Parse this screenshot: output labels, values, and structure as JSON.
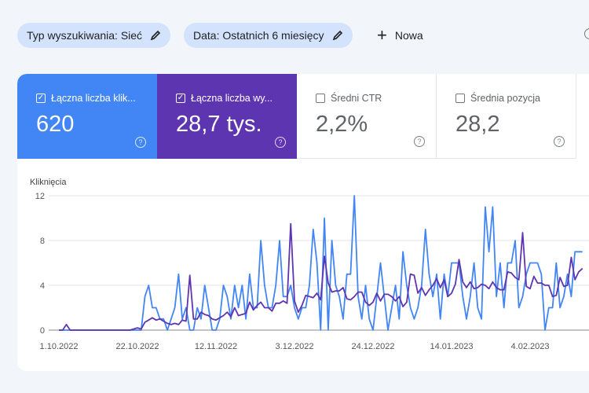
{
  "filters": {
    "search_type": "Typ wyszukiwania: Sieć",
    "date": "Data: Ostatnich 6 miesięcy",
    "new_label": "Nowa"
  },
  "metrics": [
    {
      "label": "Łączna liczba klik...",
      "value": "620",
      "checked": true,
      "color": "#4285f4"
    },
    {
      "label": "Łączna liczba wy...",
      "value": "28,7 tys.",
      "checked": true,
      "color": "#5e35b1"
    },
    {
      "label": "Średni CTR",
      "value": "2,2%",
      "checked": false
    },
    {
      "label": "Średnia pozycja",
      "value": "28,2",
      "checked": false
    }
  ],
  "chart_data": {
    "type": "line",
    "ylabel": "Kliknięcia",
    "ylim": [
      0,
      12
    ],
    "yticks": [
      "0",
      "4",
      "8",
      "12"
    ],
    "xticks": [
      "1.10.2022",
      "22.10.2022",
      "12.11.2022",
      "3.12.2022",
      "24.12.2022",
      "14.01.2023",
      "4.02.2023"
    ],
    "x_start": "1.10.2022",
    "x_step": "1 day",
    "grid": true,
    "series": [
      {
        "color": "#4285f4",
        "values": [
          0,
          0,
          0,
          0,
          0,
          0,
          0,
          0,
          0,
          0,
          0,
          0,
          0,
          0,
          0,
          0,
          0,
          0,
          0,
          0,
          0,
          0,
          0,
          3,
          4,
          2,
          2,
          1,
          1,
          0,
          1,
          2,
          5,
          1,
          2,
          0,
          0,
          2,
          1,
          4,
          2,
          0,
          0,
          1,
          4,
          3,
          1,
          4,
          2,
          4,
          1,
          5,
          2,
          2,
          8,
          4,
          2,
          2,
          4,
          8,
          3,
          3,
          4,
          2,
          1,
          2,
          2,
          4,
          9,
          6,
          0,
          10,
          0,
          8,
          4,
          3,
          1,
          5,
          5,
          12,
          3,
          1,
          4,
          1,
          0,
          3,
          6,
          3,
          0,
          2,
          4,
          1,
          7,
          4,
          2,
          1,
          2,
          4,
          9,
          5,
          3,
          5,
          1,
          5,
          3,
          6,
          6,
          6,
          3,
          1,
          3,
          6,
          2,
          1,
          11,
          7,
          11,
          3,
          6,
          2,
          6,
          6,
          8,
          2,
          3,
          5,
          6,
          6,
          6,
          5,
          0,
          2,
          2,
          6,
          2,
          3,
          5,
          3,
          7,
          7,
          7
        ]
      },
      {
        "color": "#5e35b1",
        "values": [
          0,
          0,
          0.5,
          0,
          0,
          0,
          0,
          0,
          0,
          0,
          0,
          0,
          0,
          0,
          0,
          0,
          0,
          0,
          0,
          0,
          0.1,
          0.2,
          0.1,
          0.7,
          0.9,
          1.1,
          0.9,
          1,
          0.8,
          0.6,
          0.5,
          0.6,
          0.5,
          0.9,
          0.8,
          4.9,
          1,
          1,
          1.6,
          1.4,
          1.3,
          1,
          0.9,
          1.1,
          1.3,
          1.6,
          1.2,
          2,
          1.3,
          1.4,
          1.5,
          2.5,
          1.8,
          2.2,
          2.5,
          2,
          2,
          1.7,
          2.4,
          2.4,
          2.6,
          2.4,
          9.5,
          2.6,
          1.6,
          2.2,
          3.1,
          3,
          2.9,
          3.3,
          2.7,
          6.6,
          4.2,
          3.4,
          3.5,
          3.5,
          3.8,
          2.8,
          2.7,
          3,
          3.4,
          3.4,
          2.5,
          2.2,
          2.5,
          3.3,
          2.6,
          3.2,
          3.2,
          3,
          2.6,
          3,
          2.1,
          2.5,
          5,
          4.9,
          3.3,
          3.8,
          3.1,
          3.6,
          4,
          4.6,
          3.8,
          4.5,
          3,
          3.3,
          4.1,
          6.3,
          4.3,
          3.8,
          4.3,
          3.7,
          3.8,
          4.1,
          4,
          3.7,
          4.3,
          3.8,
          3.6,
          3.6,
          5.2,
          5.1,
          4.7,
          4.5,
          8.7,
          3.9,
          3.7,
          4.8,
          4.2,
          4.2,
          4,
          4,
          3,
          3.1,
          4.7,
          3.9,
          4,
          6.5,
          4.5,
          5.2,
          5.5
        ]
      }
    ]
  }
}
